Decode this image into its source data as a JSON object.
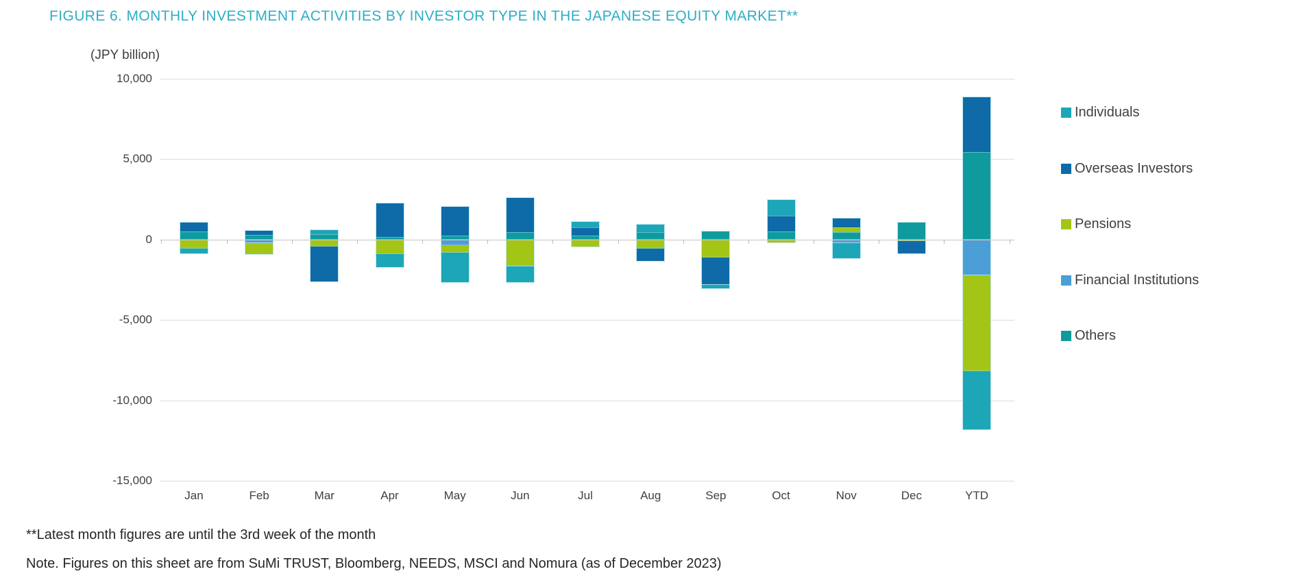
{
  "title": "FIGURE 6. MONTHLY INVESTMENT ACTIVITIES BY INVESTOR TYPE IN THE JAPANESE EQUITY MARKET**",
  "unit_label": "(JPY billion)",
  "footnotes": {
    "line1": "**Latest month figures are until the 3rd week of the month",
    "line2": "Note. Figures on this sheet are from SuMi TRUST, Bloomberg, NEEDS, MSCI and Nomura (as of December 2023)"
  },
  "colors": {
    "title_text": "#2caec6",
    "axis_text": "#404040",
    "gridline": "#dcdcdc",
    "zero_line": "#c4c4c4",
    "footnote_text": "#262626"
  },
  "chart_data": {
    "type": "bar",
    "stacked": true,
    "title": "FIGURE 6. MONTHLY INVESTMENT ACTIVITIES BY INVESTOR TYPE IN THE JAPANESE EQUITY MARKET**",
    "ylabel": "(JPY billion)",
    "xlabel": "",
    "ylim": [
      -15000,
      10000
    ],
    "y_ticks": [
      10000,
      5000,
      0,
      -5000,
      -10000,
      -15000
    ],
    "y_tick_labels": [
      "10,000",
      "5,000",
      "0",
      "-5,000",
      "-10,000",
      "-15,000"
    ],
    "grid": "horizontal",
    "legend_position": "right",
    "stack_order_from_axis": [
      "Others",
      "Financial Institutions",
      "Pensions",
      "Overseas Investors",
      "Individuals"
    ],
    "categories": [
      "Jan",
      "Feb",
      "Mar",
      "Apr",
      "May",
      "Jun",
      "Jul",
      "Aug",
      "Sep",
      "Oct",
      "Nov",
      "Dec",
      "YTD"
    ],
    "series": [
      {
        "name": "Individuals",
        "color": "#1ca6b8",
        "values": [
          -300,
          0,
          250,
          -800,
          -1850,
          -1000,
          350,
          500,
          -250,
          950,
          -950,
          0,
          -3600
        ]
      },
      {
        "name": "Overseas Investors",
        "color": "#0e6ba8",
        "values": [
          550,
          250,
          -2150,
          2100,
          1800,
          2150,
          500,
          -800,
          -1700,
          1000,
          550,
          -750,
          3400
        ]
      },
      {
        "name": "Pensions",
        "color": "#a3c616",
        "values": [
          -550,
          -700,
          -450,
          -900,
          -450,
          -1650,
          -450,
          -550,
          -1100,
          -200,
          300,
          -100,
          -6000
        ]
      },
      {
        "name": "Financial Institutions",
        "color": "#4c9fd6",
        "values": [
          0,
          -200,
          0,
          0,
          -350,
          0,
          0,
          0,
          0,
          0,
          -200,
          0,
          -2200
        ]
      },
      {
        "name": "Others",
        "color": "#0f9b9e",
        "values": [
          500,
          300,
          350,
          150,
          250,
          450,
          250,
          450,
          500,
          500,
          450,
          1050,
          5450
        ]
      }
    ]
  }
}
